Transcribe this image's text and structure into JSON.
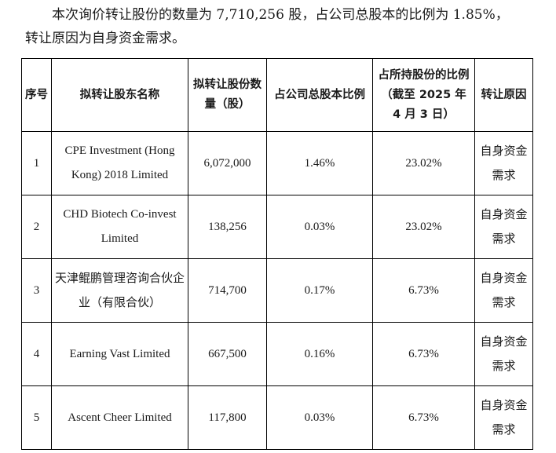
{
  "intro": {
    "line1": "本次询价转让股份的数量为 7,710,256 股，占公司总股本的比例为 1.85%，",
    "line2": "转让原因为自身资金需求。"
  },
  "table": {
    "headers": [
      "序号",
      "拟转让股东名称",
      "拟转让股份数量（股）",
      "占公司总股本比例",
      "占所持股份的比例（截至 2025 年 4 月 3 日）",
      "转让原因"
    ],
    "rows": [
      [
        "1",
        "CPE Investment (Hong Kong) 2018 Limited",
        "6,072,000",
        "1.46%",
        "23.02%",
        "自身资金需求"
      ],
      [
        "2",
        "CHD Biotech Co-invest Limited",
        "138,256",
        "0.03%",
        "23.02%",
        "自身资金需求"
      ],
      [
        "3",
        "天津鲲鹏管理咨询合伙企业（有限合伙）",
        "714,700",
        "0.17%",
        "6.73%",
        "自身资金需求"
      ],
      [
        "4",
        "Earning Vast Limited",
        "667,500",
        "0.16%",
        "6.73%",
        "自身资金需求"
      ],
      [
        "5",
        "Ascent Cheer Limited",
        "117,800",
        "0.03%",
        "6.73%",
        "自身资金需求"
      ]
    ]
  }
}
